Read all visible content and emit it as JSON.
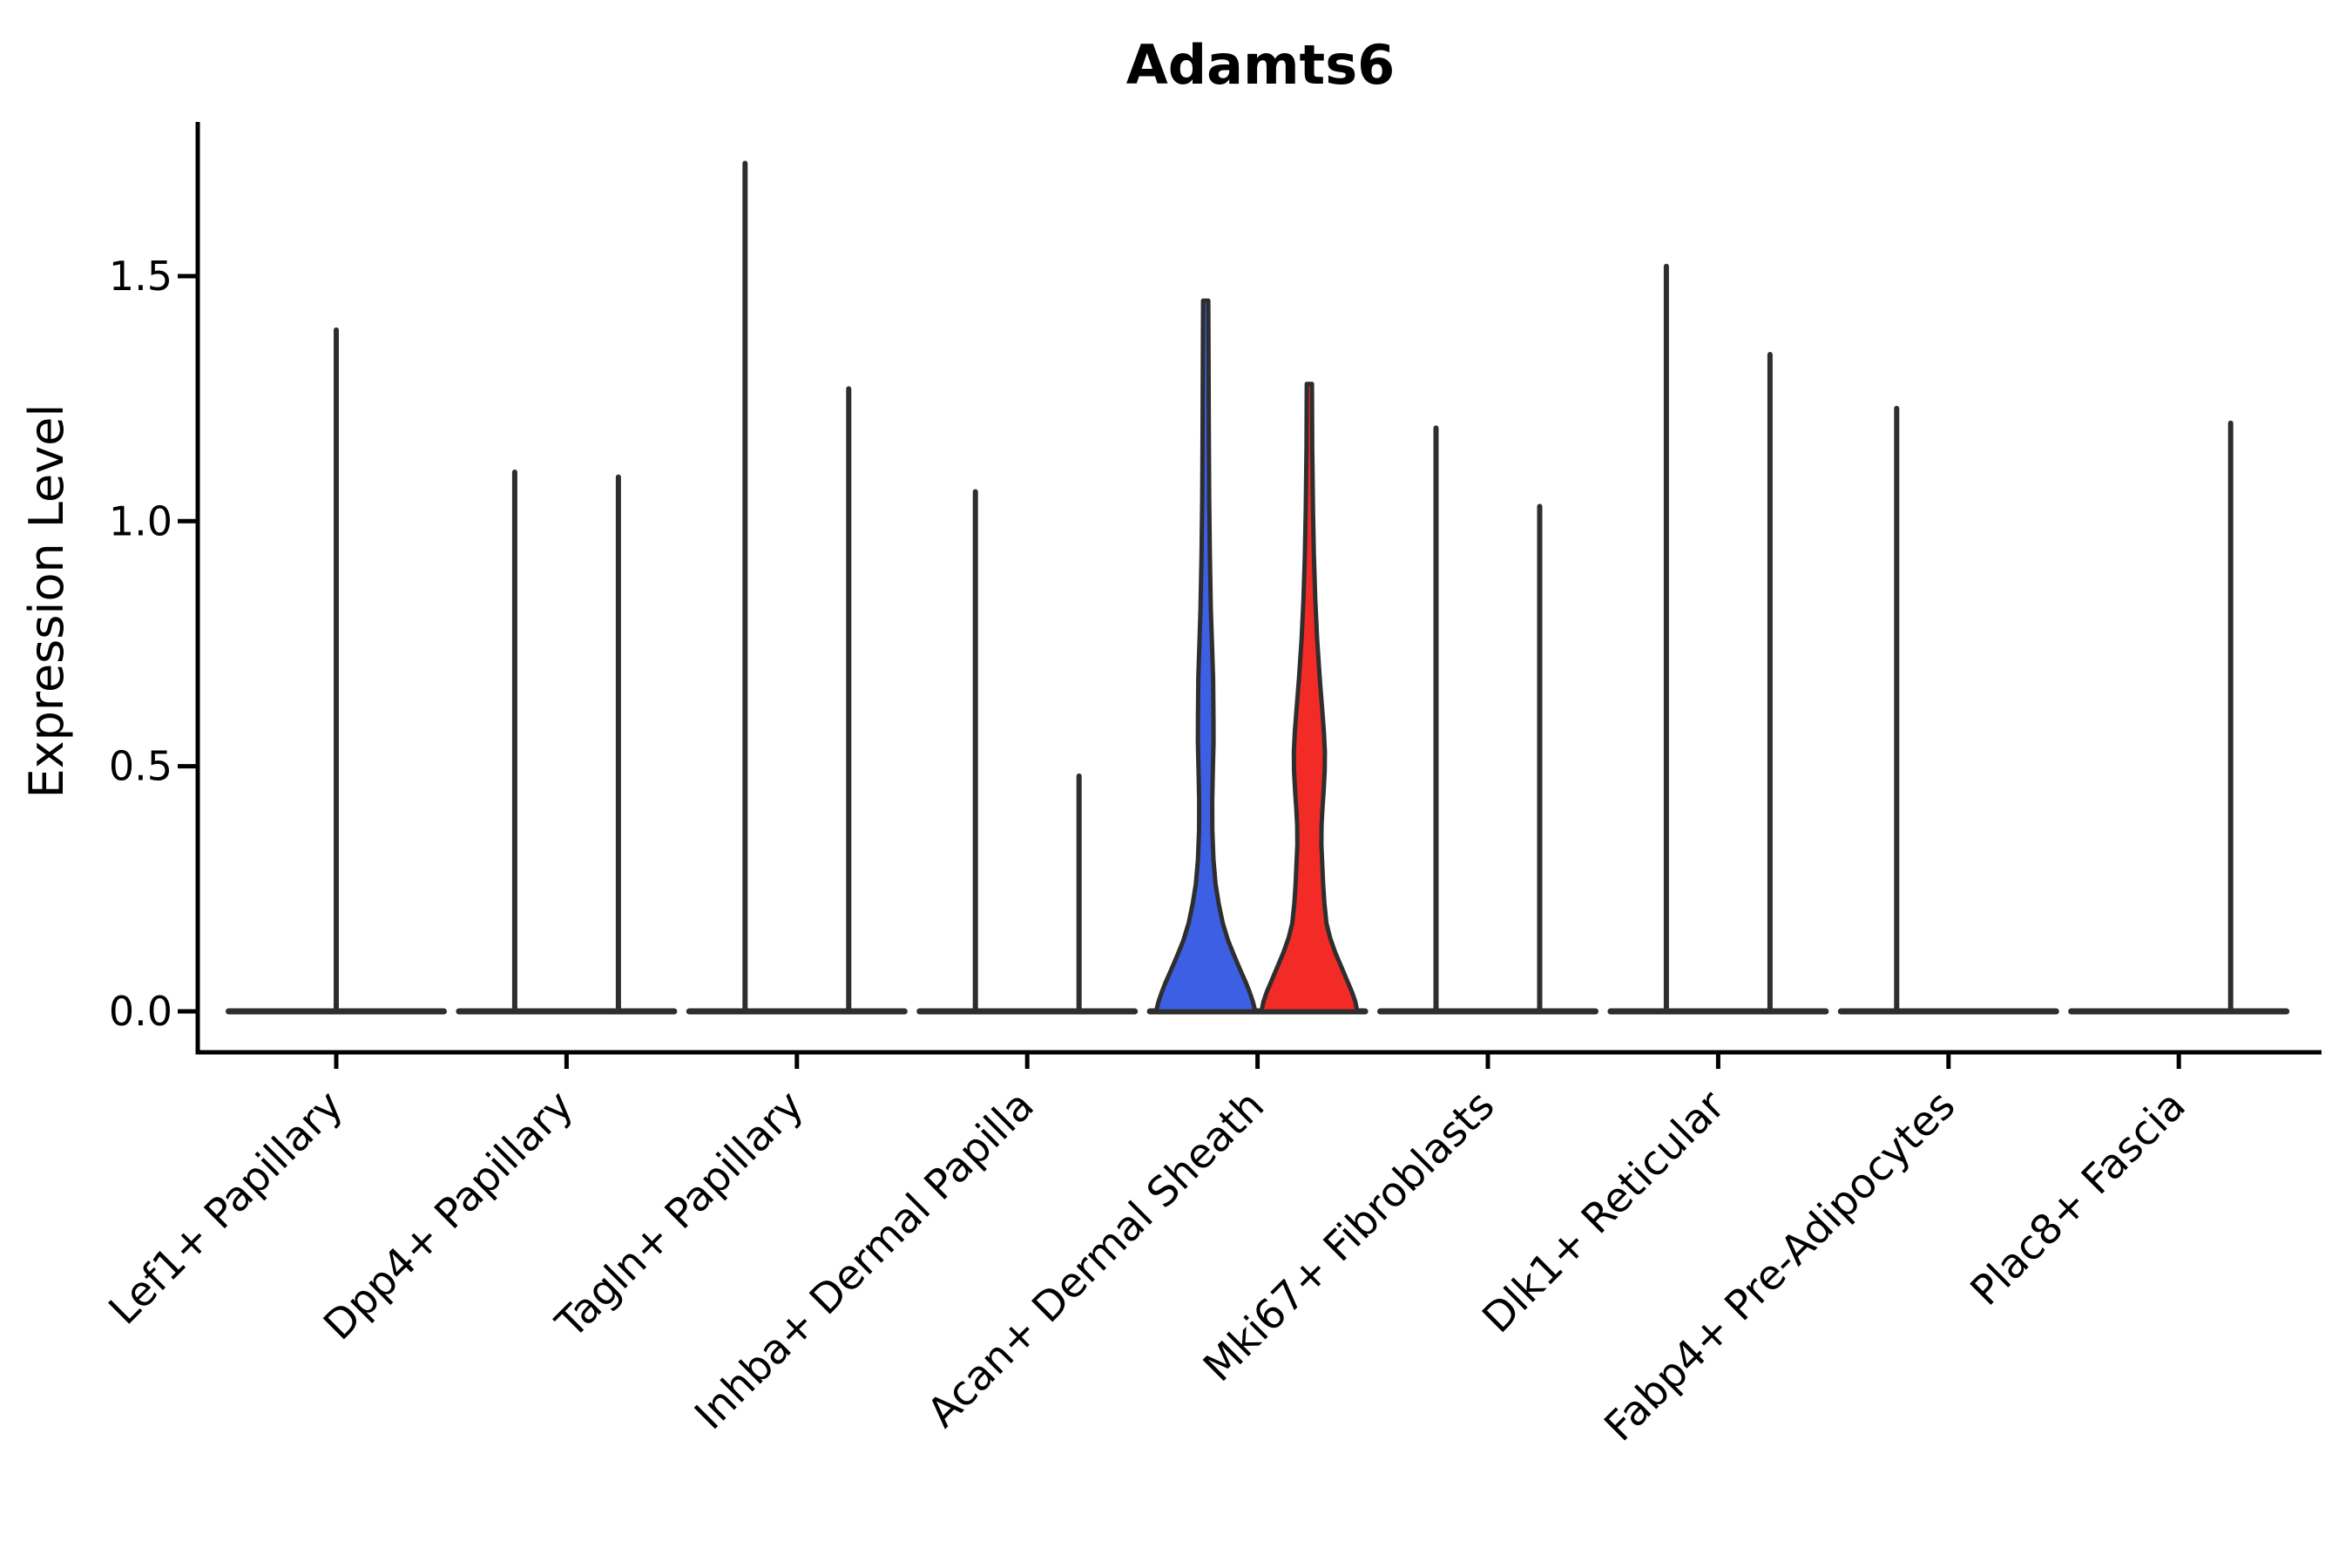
{
  "figure": {
    "title": "Adamts6",
    "ylabel": "Expression Level"
  },
  "colors": {
    "blue_fill": "#3D5FE3",
    "red_fill": "#F32B27",
    "violin_stroke": "#2E2E2E",
    "axis": "#000000",
    "background": "#FFFFFF"
  },
  "chart_data": {
    "type": "violin",
    "title": "Adamts6",
    "ylabel": "Expression Level",
    "xlabel": "",
    "ylim": [
      -0.08,
      1.82
    ],
    "yticks": [
      0.0,
      0.5,
      1.0,
      1.5
    ],
    "grid": false,
    "legend": "none",
    "categories": [
      "Lef1+ Papillary",
      "Dpp4+ Papillary",
      "Tagln+ Papillary",
      "Inhba+ Dermal Papilla",
      "Acan+ Dermal Sheath",
      "Mki67+ Fibroblasts",
      "Dlk1+ Reticular",
      "Fabp4+ Pre-Adipocytes",
      "Plac8+ Fascia"
    ],
    "violins": [
      {
        "category": "Lef1+ Papillary",
        "items": [
          {
            "side": "center",
            "max": 1.39,
            "style": "spike",
            "fill": "none"
          }
        ]
      },
      {
        "category": "Dpp4+ Papillary",
        "items": [
          {
            "side": "left",
            "max": 1.1,
            "style": "spike",
            "fill": "none"
          },
          {
            "side": "right",
            "max": 1.09,
            "style": "spike",
            "fill": "none"
          }
        ]
      },
      {
        "category": "Tagln+ Papillary",
        "items": [
          {
            "side": "left",
            "max": 1.73,
            "style": "spike",
            "fill": "none"
          },
          {
            "side": "right",
            "max": 1.27,
            "style": "spike",
            "fill": "none"
          }
        ]
      },
      {
        "category": "Inhba+ Dermal Papilla",
        "items": [
          {
            "side": "left",
            "max": 1.06,
            "style": "spike",
            "fill": "none"
          },
          {
            "side": "right",
            "max": 0.48,
            "style": "spike",
            "fill": "none"
          }
        ]
      },
      {
        "category": "Acan+ Dermal Sheath",
        "items": [
          {
            "side": "left",
            "max": 1.45,
            "style": "density",
            "fill": "blue",
            "profile": [
              [
                1.45,
                0.05
              ],
              [
                1.32,
                0.055
              ],
              [
                1.18,
                0.06
              ],
              [
                1.05,
                0.068
              ],
              [
                0.93,
                0.08
              ],
              [
                0.82,
                0.1
              ],
              [
                0.74,
                0.125
              ],
              [
                0.68,
                0.143
              ],
              [
                0.6,
                0.15
              ],
              [
                0.55,
                0.151
              ],
              [
                0.49,
                0.138
              ],
              [
                0.43,
                0.126
              ],
              [
                0.37,
                0.128
              ],
              [
                0.31,
                0.15
              ],
              [
                0.26,
                0.19
              ],
              [
                0.22,
                0.25
              ],
              [
                0.18,
                0.33
              ],
              [
                0.145,
                0.43
              ],
              [
                0.115,
                0.545
              ],
              [
                0.085,
                0.665
              ],
              [
                0.06,
                0.77
              ],
              [
                0.04,
                0.845
              ],
              [
                0.02,
                0.91
              ],
              [
                0.0,
                0.958
              ]
            ]
          },
          {
            "side": "right",
            "max": 1.28,
            "style": "density",
            "fill": "red",
            "profile": [
              [
                1.28,
                0.05
              ],
              [
                1.15,
                0.056
              ],
              [
                1.02,
                0.07
              ],
              [
                0.93,
                0.088
              ],
              [
                0.84,
                0.115
              ],
              [
                0.76,
                0.15
              ],
              [
                0.68,
                0.2
              ],
              [
                0.61,
                0.252
              ],
              [
                0.57,
                0.28
              ],
              [
                0.53,
                0.3
              ],
              [
                0.49,
                0.295
              ],
              [
                0.45,
                0.275
              ],
              [
                0.41,
                0.25
              ],
              [
                0.38,
                0.235
              ],
              [
                0.34,
                0.232
              ],
              [
                0.3,
                0.248
              ],
              [
                0.26,
                0.265
              ],
              [
                0.22,
                0.29
              ],
              [
                0.18,
                0.33
              ],
              [
                0.15,
                0.4
              ],
              [
                0.12,
                0.5
              ],
              [
                0.09,
                0.62
              ],
              [
                0.06,
                0.74
              ],
              [
                0.04,
                0.82
              ],
              [
                0.02,
                0.885
              ],
              [
                0.0,
                0.924
              ]
            ]
          }
        ]
      },
      {
        "category": "Mki67+ Fibroblasts",
        "items": [
          {
            "side": "left",
            "max": 1.19,
            "style": "spike",
            "fill": "none"
          },
          {
            "side": "right",
            "max": 1.03,
            "style": "spike",
            "fill": "none"
          }
        ]
      },
      {
        "category": "Dlk1+ Reticular",
        "items": [
          {
            "side": "left",
            "max": 1.52,
            "style": "spike",
            "fill": "none"
          },
          {
            "side": "right",
            "max": 1.34,
            "style": "spike",
            "fill": "none"
          }
        ]
      },
      {
        "category": "Fabp4+ Pre-Adipocytes",
        "items": [
          {
            "side": "left",
            "max": 1.23,
            "style": "spike",
            "fill": "none"
          }
        ]
      },
      {
        "category": "Plac8+ Fascia",
        "items": [
          {
            "side": "right",
            "max": 1.2,
            "style": "spike",
            "fill": "none"
          }
        ]
      }
    ]
  }
}
